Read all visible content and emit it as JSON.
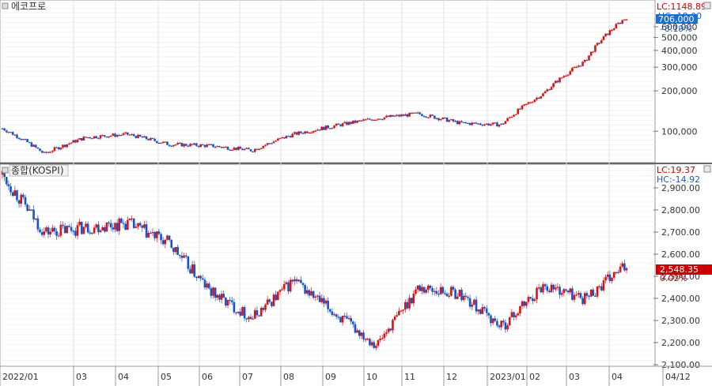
{
  "top_panel": {
    "title": "에코프로",
    "lc": "LC:1148.89",
    "hc": "HC:-18.00",
    "last_price": "706,000",
    "change_pct": "8.19%"
  },
  "bottom_panel": {
    "title": "종합(KOSPI)",
    "lc": "LC:19.37",
    "hc": "HC:-14.92",
    "last_value": "2,548.35",
    "change_pct": "0.02%"
  },
  "colors": {
    "up": "#dd1111",
    "down": "#1155cc",
    "label_bg": "#cc0000",
    "label_bg2": "#1a6fd6"
  },
  "x_axis_labels": [
    "2022/01",
    "03",
    "04",
    "05",
    "06",
    "07",
    "08",
    "09",
    "10",
    "11",
    "12",
    "2023/01",
    "02",
    "03",
    "04",
    "04/12"
  ],
  "chart_data": [
    {
      "type": "line",
      "name": "에코프로",
      "y_scale": "log",
      "ylim": [
        60000,
        900000
      ],
      "y_ticks": [
        "100,000",
        "200,000",
        "300,000",
        "400,000",
        "500,000",
        "600,000",
        "706,000"
      ],
      "x": [
        "2022-01",
        "2022-02",
        "2022-03",
        "2022-04",
        "2022-05",
        "2022-06",
        "2022-07",
        "2022-08",
        "2022-09",
        "2022-10",
        "2022-11",
        "2022-12",
        "2023-01",
        "2023-02",
        "2023-03",
        "2023-04"
      ],
      "values": [
        105000,
        68000,
        90000,
        95000,
        80000,
        78000,
        72000,
        95000,
        110000,
        125000,
        135000,
        115000,
        112000,
        190000,
        330000,
        706000
      ]
    },
    {
      "type": "line",
      "name": "종합(KOSPI)",
      "ylim": [
        2100,
        3000
      ],
      "y_ticks": [
        "2,100.00",
        "2,200.00",
        "2,300.00",
        "2,400.00",
        "2,500.00",
        "2,600.00",
        "2,700.00",
        "2,800.00",
        "2,900.00"
      ],
      "x": [
        "2022-01",
        "2022-02",
        "2022-03",
        "2022-04",
        "2022-05",
        "2022-06",
        "2022-07",
        "2022-08",
        "2022-09",
        "2022-10",
        "2022-11",
        "2022-12",
        "2023-01",
        "2023-02",
        "2023-03",
        "2023-04"
      ],
      "values": [
        2960,
        2700,
        2720,
        2740,
        2650,
        2430,
        2310,
        2480,
        2330,
        2190,
        2450,
        2420,
        2270,
        2460,
        2400,
        2548
      ]
    }
  ]
}
